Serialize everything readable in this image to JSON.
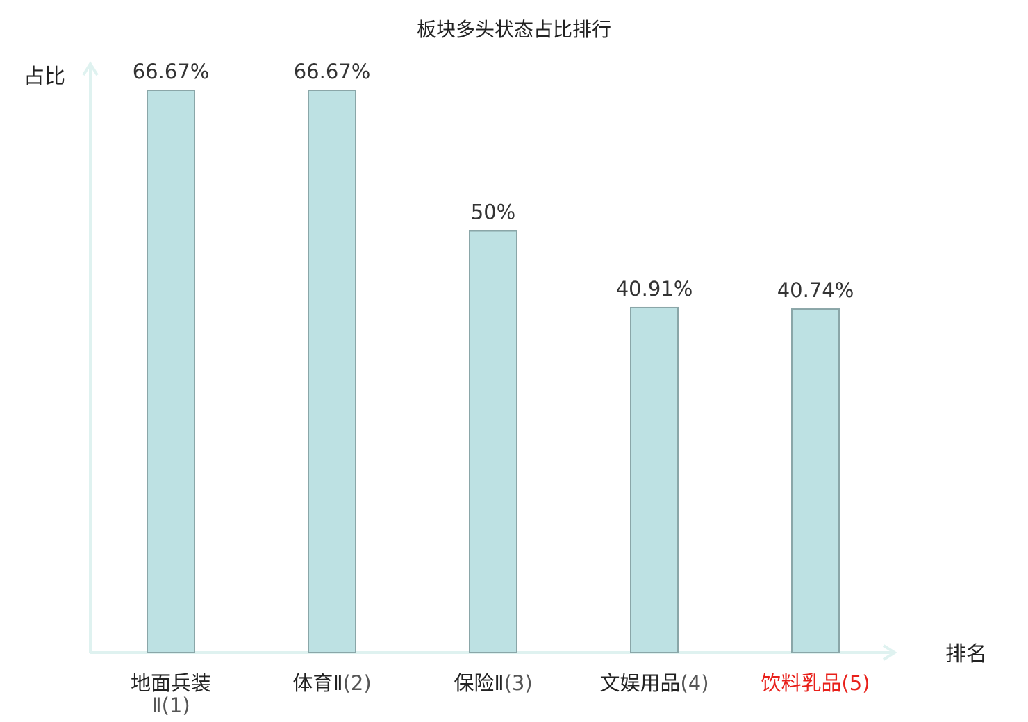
{
  "chart_data": {
    "type": "bar",
    "title": "板块多头状态占比排行",
    "ylabel": "占比",
    "xlabel": "排名",
    "ylim": [
      0,
      70
    ],
    "grid": false,
    "categories": [
      {
        "name": "地面兵装Ⅱ",
        "rank": "(1)",
        "highlight": false
      },
      {
        "name": "体育Ⅱ",
        "rank": "(2)",
        "highlight": false
      },
      {
        "name": "保险Ⅱ",
        "rank": "(3)",
        "highlight": false
      },
      {
        "name": "文娱用品",
        "rank": "(4)",
        "highlight": false
      },
      {
        "name": "饮料乳品",
        "rank": "(5)",
        "highlight": true
      }
    ],
    "values": [
      66.67,
      66.67,
      50,
      40.91,
      40.74
    ],
    "value_labels": [
      "66.67%",
      "66.67%",
      "50%",
      "40.91%",
      "40.74%"
    ]
  },
  "colors": {
    "bar_fill": "#bde1e3",
    "bar_stroke": "#8aa6a8",
    "axis": "#dff2f0",
    "text": "#222222",
    "highlight": "#e8201a"
  }
}
